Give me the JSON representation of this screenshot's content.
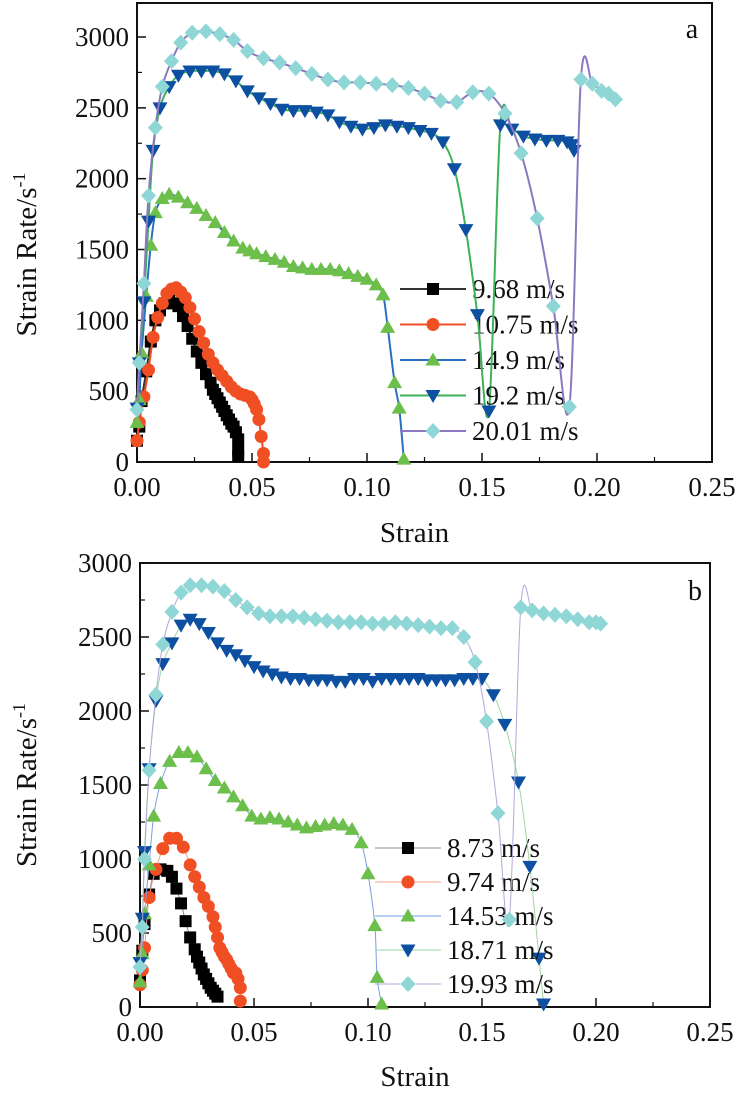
{
  "chart_data": [
    {
      "type": "line",
      "panel_label": "a",
      "xlabel": "Strain",
      "ylabel": "Strain Rate/s",
      "ylabel_sup": "-1",
      "xlim": [
        0,
        0.25
      ],
      "ylim": [
        0,
        3000
      ],
      "xticks": [
        "0.00",
        "0.05",
        "0.10",
        "0.15",
        "0.20",
        "0.25"
      ],
      "yticks": [
        "0",
        "500",
        "1000",
        "1500",
        "2000",
        "2500",
        "3000"
      ],
      "grid": false,
      "legend_position": "center-right",
      "series": [
        {
          "name": "9.68 m/s",
          "marker": "square",
          "marker_color": "#000000",
          "line_color": "#333333",
          "x": [
            0.0,
            0.001,
            0.002,
            0.004,
            0.006,
            0.008,
            0.01,
            0.012,
            0.014,
            0.016,
            0.018,
            0.02,
            0.022,
            0.024,
            0.026,
            0.028,
            0.03,
            0.032,
            0.033,
            0.034,
            0.035,
            0.036,
            0.037,
            0.038,
            0.039,
            0.04,
            0.041,
            0.042,
            0.043,
            0.044,
            0.044,
            0.044
          ],
          "y": [
            150,
            250,
            430,
            640,
            850,
            1000,
            1070,
            1120,
            1140,
            1120,
            1100,
            1030,
            960,
            870,
            780,
            700,
            620,
            560,
            510,
            480,
            450,
            420,
            390,
            360,
            330,
            300,
            270,
            250,
            210,
            160,
            80,
            40
          ]
        },
        {
          "name": "10.75 m/s",
          "marker": "circle",
          "marker_color": "#f04e23",
          "line_color": "#f04e23",
          "x": [
            0.0,
            0.001,
            0.003,
            0.005,
            0.007,
            0.009,
            0.011,
            0.013,
            0.015,
            0.017,
            0.019,
            0.021,
            0.023,
            0.025,
            0.027,
            0.029,
            0.031,
            0.033,
            0.035,
            0.037,
            0.039,
            0.041,
            0.043,
            0.045,
            0.047,
            0.049,
            0.05,
            0.051,
            0.052,
            0.053,
            0.054,
            0.055,
            0.055
          ],
          "y": [
            150,
            280,
            460,
            650,
            880,
            1020,
            1120,
            1190,
            1220,
            1230,
            1200,
            1160,
            1090,
            1010,
            920,
            840,
            760,
            700,
            650,
            610,
            570,
            530,
            500,
            480,
            470,
            460,
            440,
            410,
            370,
            300,
            180,
            60,
            0
          ]
        },
        {
          "name": "14.9 m/s",
          "marker": "triangle-up",
          "marker_color": "#6cbf4a",
          "line_color": "#2b6fc0",
          "x": [
            0.0,
            0.001,
            0.002,
            0.004,
            0.006,
            0.008,
            0.011,
            0.014,
            0.018,
            0.022,
            0.026,
            0.03,
            0.034,
            0.038,
            0.042,
            0.046,
            0.049,
            0.052,
            0.056,
            0.06,
            0.064,
            0.068,
            0.072,
            0.076,
            0.08,
            0.084,
            0.088,
            0.092,
            0.096,
            0.1,
            0.104,
            0.107,
            0.109,
            0.112,
            0.114,
            0.116
          ],
          "y": [
            280,
            440,
            770,
            1170,
            1530,
            1760,
            1860,
            1890,
            1870,
            1830,
            1790,
            1740,
            1690,
            1620,
            1560,
            1510,
            1490,
            1470,
            1450,
            1430,
            1410,
            1380,
            1370,
            1360,
            1360,
            1360,
            1350,
            1330,
            1310,
            1290,
            1250,
            1180,
            950,
            560,
            380,
            20
          ]
        },
        {
          "name": "19.2 m/s",
          "marker": "triangle-down",
          "marker_color": "#0d4fa0",
          "line_color": "#3db25a",
          "x": [
            0.0,
            0.001,
            0.003,
            0.005,
            0.007,
            0.01,
            0.014,
            0.018,
            0.023,
            0.028,
            0.033,
            0.038,
            0.043,
            0.048,
            0.053,
            0.058,
            0.063,
            0.068,
            0.073,
            0.078,
            0.083,
            0.088,
            0.093,
            0.098,
            0.103,
            0.108,
            0.113,
            0.118,
            0.123,
            0.128,
            0.133,
            0.138,
            0.143,
            0.148,
            0.153,
            0.158,
            0.163,
            0.168,
            0.173,
            0.178,
            0.183,
            0.187,
            0.189,
            0.19
          ],
          "y": [
            380,
            700,
            1130,
            1700,
            2200,
            2500,
            2650,
            2730,
            2760,
            2760,
            2760,
            2740,
            2690,
            2620,
            2570,
            2530,
            2490,
            2480,
            2480,
            2470,
            2450,
            2400,
            2370,
            2350,
            2360,
            2380,
            2370,
            2360,
            2340,
            2320,
            2260,
            2070,
            1640,
            1040,
            360,
            2380,
            2350,
            2300,
            2280,
            2270,
            2270,
            2260,
            2240,
            2200
          ]
        },
        {
          "name": "20.01 m/s",
          "marker": "diamond",
          "marker_color": "#8fd6d6",
          "line_color": "#8c78c0",
          "x": [
            0.0,
            0.001,
            0.003,
            0.005,
            0.008,
            0.011,
            0.015,
            0.019,
            0.024,
            0.03,
            0.036,
            0.042,
            0.048,
            0.055,
            0.062,
            0.069,
            0.076,
            0.083,
            0.09,
            0.097,
            0.104,
            0.111,
            0.118,
            0.125,
            0.132,
            0.139,
            0.146,
            0.153,
            0.16,
            0.167,
            0.174,
            0.181,
            0.188,
            0.193,
            0.198,
            0.202,
            0.205,
            0.208
          ],
          "y": [
            370,
            700,
            1260,
            1880,
            2360,
            2650,
            2830,
            2960,
            3030,
            3040,
            3020,
            2980,
            2900,
            2850,
            2820,
            2780,
            2740,
            2700,
            2680,
            2680,
            2670,
            2660,
            2640,
            2600,
            2550,
            2540,
            2610,
            2600,
            2460,
            2180,
            1720,
            1100,
            390,
            2700,
            2670,
            2620,
            2600,
            2560
          ]
        }
      ]
    },
    {
      "type": "line",
      "panel_label": "b",
      "xlabel": "Strain",
      "ylabel": "Strain Rate/s",
      "ylabel_sup": "-1",
      "xlim": [
        0,
        0.25
      ],
      "ylim": [
        0,
        3000
      ],
      "xticks": [
        "0.00",
        "0.05",
        "0.10",
        "0.15",
        "0.20",
        "0.25"
      ],
      "yticks": [
        "0",
        "500",
        "1000",
        "1500",
        "2000",
        "2500",
        "3000"
      ],
      "grid": false,
      "legend_position": "center-right",
      "series": [
        {
          "name": "8.73 m/s",
          "marker": "square",
          "marker_color": "#000000",
          "line_color": "#888888",
          "x": [
            0.0,
            0.001,
            0.002,
            0.004,
            0.006,
            0.009,
            0.012,
            0.014,
            0.016,
            0.018,
            0.02,
            0.022,
            0.024,
            0.025,
            0.026,
            0.027,
            0.028,
            0.029,
            0.03,
            0.031,
            0.032,
            0.033,
            0.034
          ],
          "y": [
            180,
            380,
            560,
            760,
            900,
            930,
            920,
            880,
            800,
            700,
            580,
            470,
            390,
            340,
            300,
            260,
            220,
            190,
            160,
            130,
            110,
            90,
            70
          ]
        },
        {
          "name": "9.74 m/s",
          "marker": "circle",
          "marker_color": "#f04e23",
          "line_color": "#f4a08a",
          "x": [
            0.0,
            0.001,
            0.002,
            0.004,
            0.007,
            0.01,
            0.013,
            0.016,
            0.019,
            0.022,
            0.024,
            0.026,
            0.028,
            0.03,
            0.032,
            0.033,
            0.034,
            0.035,
            0.036,
            0.037,
            0.038,
            0.039,
            0.04,
            0.041,
            0.042,
            0.043,
            0.044,
            0.044
          ],
          "y": [
            150,
            250,
            400,
            740,
            930,
            1070,
            1140,
            1140,
            1080,
            960,
            880,
            810,
            740,
            680,
            610,
            540,
            470,
            400,
            370,
            340,
            320,
            290,
            260,
            230,
            230,
            190,
            130,
            40
          ]
        },
        {
          "name": "14.53 m/s",
          "marker": "triangle-up",
          "marker_color": "#6cbf4a",
          "line_color": "#7a9ee0",
          "x": [
            0.0,
            0.001,
            0.002,
            0.004,
            0.006,
            0.009,
            0.013,
            0.017,
            0.021,
            0.025,
            0.029,
            0.033,
            0.037,
            0.041,
            0.045,
            0.049,
            0.053,
            0.057,
            0.061,
            0.065,
            0.069,
            0.073,
            0.077,
            0.081,
            0.085,
            0.089,
            0.093,
            0.097,
            0.1,
            0.103,
            0.104,
            0.106
          ],
          "y": [
            170,
            360,
            630,
            960,
            1290,
            1510,
            1660,
            1720,
            1720,
            1690,
            1610,
            1530,
            1480,
            1420,
            1360,
            1290,
            1270,
            1280,
            1270,
            1250,
            1230,
            1210,
            1220,
            1230,
            1240,
            1230,
            1200,
            1110,
            900,
            550,
            200,
            20
          ]
        },
        {
          "name": "18.71 m/s",
          "marker": "triangle-down",
          "marker_color": "#0d4fa0",
          "line_color": "#9ed6a4",
          "x": [
            0.0,
            0.001,
            0.002,
            0.004,
            0.007,
            0.01,
            0.014,
            0.018,
            0.022,
            0.026,
            0.03,
            0.034,
            0.038,
            0.042,
            0.046,
            0.05,
            0.054,
            0.058,
            0.062,
            0.066,
            0.07,
            0.074,
            0.078,
            0.082,
            0.086,
            0.09,
            0.094,
            0.098,
            0.102,
            0.106,
            0.11,
            0.114,
            0.118,
            0.122,
            0.126,
            0.13,
            0.134,
            0.138,
            0.142,
            0.146,
            0.15,
            0.155,
            0.16,
            0.166,
            0.171,
            0.175,
            0.177
          ],
          "y": [
            300,
            600,
            1050,
            1610,
            2070,
            2320,
            2460,
            2580,
            2620,
            2590,
            2530,
            2460,
            2410,
            2380,
            2340,
            2300,
            2270,
            2250,
            2230,
            2220,
            2220,
            2210,
            2210,
            2210,
            2200,
            2200,
            2220,
            2220,
            2200,
            2220,
            2220,
            2220,
            2220,
            2220,
            2210,
            2210,
            2210,
            2210,
            2220,
            2220,
            2220,
            2110,
            1910,
            1520,
            950,
            330,
            20
          ]
        },
        {
          "name": "19.93 m/s",
          "marker": "diamond",
          "marker_color": "#8fd6d6",
          "line_color": "#b0a8d8",
          "x": [
            0.0,
            0.001,
            0.002,
            0.004,
            0.007,
            0.01,
            0.014,
            0.018,
            0.022,
            0.027,
            0.032,
            0.037,
            0.042,
            0.047,
            0.052,
            0.057,
            0.062,
            0.067,
            0.072,
            0.077,
            0.082,
            0.087,
            0.092,
            0.097,
            0.102,
            0.107,
            0.112,
            0.117,
            0.122,
            0.127,
            0.132,
            0.137,
            0.142,
            0.147,
            0.152,
            0.157,
            0.162,
            0.167,
            0.172,
            0.177,
            0.182,
            0.187,
            0.192,
            0.197,
            0.2,
            0.202
          ],
          "y": [
            270,
            540,
            1000,
            1600,
            2110,
            2450,
            2670,
            2800,
            2850,
            2850,
            2840,
            2810,
            2750,
            2700,
            2660,
            2640,
            2640,
            2640,
            2630,
            2620,
            2610,
            2600,
            2600,
            2600,
            2590,
            2590,
            2600,
            2590,
            2580,
            2570,
            2560,
            2560,
            2500,
            2330,
            1930,
            1310,
            590,
            2700,
            2680,
            2660,
            2650,
            2640,
            2620,
            2600,
            2600,
            2590
          ]
        }
      ]
    }
  ]
}
